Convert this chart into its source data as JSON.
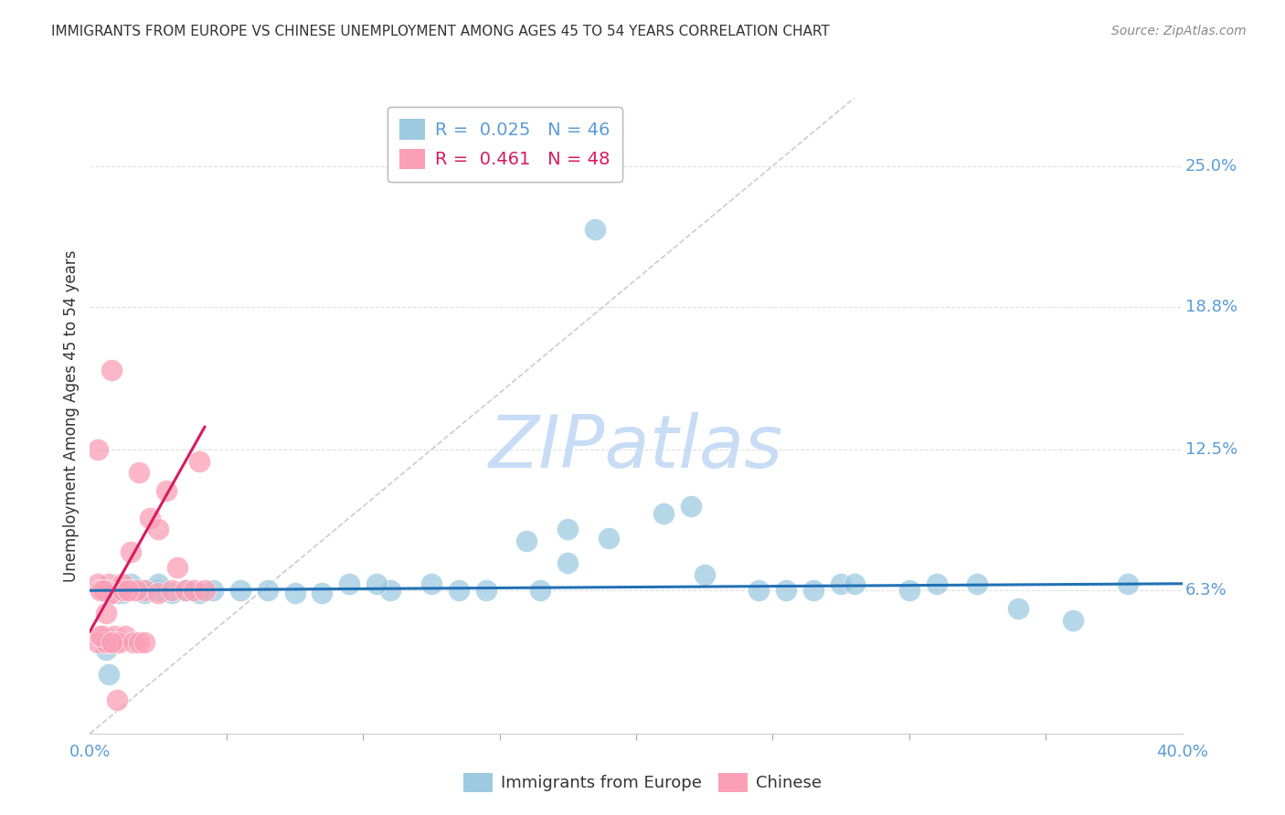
{
  "title": "IMMIGRANTS FROM EUROPE VS CHINESE UNEMPLOYMENT AMONG AGES 45 TO 54 YEARS CORRELATION CHART",
  "source": "Source: ZipAtlas.com",
  "ylabel": "Unemployment Among Ages 45 to 54 years",
  "xlim": [
    0.0,
    0.4
  ],
  "ylim": [
    0.0,
    0.28
  ],
  "ytick_positions": [
    0.063,
    0.125,
    0.188,
    0.25
  ],
  "ytick_labels": [
    "6.3%",
    "12.5%",
    "18.8%",
    "25.0%"
  ],
  "xtick_minor_positions": [
    0.05,
    0.1,
    0.15,
    0.2,
    0.25,
    0.3,
    0.35
  ],
  "xtick_label_left": "0.0%",
  "xtick_label_right": "40.0%",
  "legend_R_blue": "0.025",
  "legend_N_blue": "46",
  "legend_R_pink": "0.461",
  "legend_N_pink": "48",
  "label_blue": "Immigrants from Europe",
  "label_pink": "Chinese",
  "blue_scatter_x": [
    0.185,
    0.21,
    0.16,
    0.175,
    0.275,
    0.245,
    0.265,
    0.31,
    0.38,
    0.28,
    0.255,
    0.225,
    0.19,
    0.175,
    0.165,
    0.145,
    0.135,
    0.125,
    0.11,
    0.105,
    0.095,
    0.085,
    0.075,
    0.065,
    0.055,
    0.045,
    0.04,
    0.035,
    0.03,
    0.025,
    0.025,
    0.02,
    0.02,
    0.015,
    0.015,
    0.012,
    0.01,
    0.01,
    0.008,
    0.007,
    0.006,
    0.325,
    0.34,
    0.36,
    0.3,
    0.22
  ],
  "blue_scatter_y": [
    0.222,
    0.097,
    0.085,
    0.075,
    0.066,
    0.063,
    0.063,
    0.066,
    0.066,
    0.066,
    0.063,
    0.07,
    0.086,
    0.09,
    0.063,
    0.063,
    0.063,
    0.066,
    0.063,
    0.066,
    0.066,
    0.062,
    0.062,
    0.063,
    0.063,
    0.063,
    0.062,
    0.063,
    0.062,
    0.063,
    0.066,
    0.063,
    0.062,
    0.063,
    0.066,
    0.062,
    0.063,
    0.062,
    0.041,
    0.026,
    0.037,
    0.066,
    0.055,
    0.05,
    0.063,
    0.1
  ],
  "pink_scatter_x": [
    0.005,
    0.007,
    0.008,
    0.01,
    0.012,
    0.015,
    0.018,
    0.02,
    0.022,
    0.025,
    0.025,
    0.028,
    0.03,
    0.032,
    0.035,
    0.038,
    0.04,
    0.042,
    0.004,
    0.004,
    0.005,
    0.006,
    0.007,
    0.009,
    0.011,
    0.013,
    0.015,
    0.017,
    0.003,
    0.004,
    0.006,
    0.008,
    0.01,
    0.003,
    0.004,
    0.005,
    0.006,
    0.008,
    0.01,
    0.012,
    0.014,
    0.016,
    0.018,
    0.02,
    0.003,
    0.004,
    0.006,
    0.008
  ],
  "pink_scatter_y": [
    0.063,
    0.066,
    0.062,
    0.063,
    0.066,
    0.063,
    0.115,
    0.063,
    0.095,
    0.062,
    0.09,
    0.107,
    0.063,
    0.073,
    0.063,
    0.063,
    0.12,
    0.063,
    0.063,
    0.063,
    0.043,
    0.04,
    0.04,
    0.043,
    0.04,
    0.043,
    0.08,
    0.063,
    0.066,
    0.063,
    0.063,
    0.062,
    0.04,
    0.04,
    0.063,
    0.063,
    0.04,
    0.16,
    0.015,
    0.063,
    0.063,
    0.04,
    0.04,
    0.04,
    0.125,
    0.043,
    0.053,
    0.04
  ],
  "blue_line_x": [
    0.0,
    0.4
  ],
  "blue_line_y": [
    0.063,
    0.066
  ],
  "pink_line_x": [
    0.0,
    0.042
  ],
  "pink_line_y": [
    0.045,
    0.135
  ],
  "diag_line_x": [
    0.0,
    0.28
  ],
  "diag_line_y": [
    0.0,
    0.28
  ],
  "watermark": "ZIPatlas",
  "watermark_color": "#c8dcf5",
  "background_color": "#ffffff",
  "title_color": "#333333",
  "axis_color": "#5b9bd5",
  "scatter_blue_color": "#9ecae1",
  "scatter_pink_color": "#fa9fb5",
  "trend_blue_color": "#2171b5",
  "trend_pink_color": "#d81b60",
  "diag_color": "#cccccc",
  "grid_color": "#e0e0e0"
}
